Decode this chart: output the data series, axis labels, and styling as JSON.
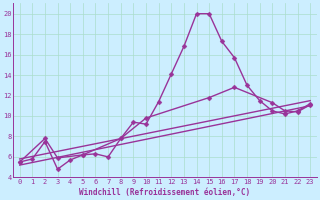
{
  "background_color": "#cceeff",
  "grid_color": "#aaddcc",
  "line_color": "#993399",
  "xlabel": "Windchill (Refroidissement éolien,°C)",
  "xlim": [
    -0.5,
    23.5
  ],
  "ylim": [
    4,
    21
  ],
  "yticks": [
    4,
    6,
    8,
    10,
    12,
    14,
    16,
    18,
    20
  ],
  "xticks": [
    0,
    1,
    2,
    3,
    4,
    5,
    6,
    7,
    8,
    9,
    10,
    11,
    12,
    13,
    14,
    15,
    16,
    17,
    18,
    19,
    20,
    21,
    22,
    23
  ],
  "series": [
    {
      "x": [
        0,
        1,
        2,
        3,
        4,
        5,
        6,
        7,
        8,
        9,
        10,
        11,
        12,
        13,
        14,
        15,
        16,
        17,
        18,
        19,
        20,
        21,
        22,
        23
      ],
      "y": [
        5.5,
        5.8,
        7.5,
        4.8,
        5.7,
        6.2,
        6.3,
        6.0,
        7.8,
        9.4,
        9.2,
        11.4,
        14.1,
        16.8,
        20.0,
        20.0,
        17.3,
        15.7,
        13.0,
        11.5,
        10.5,
        10.2,
        10.5,
        11.2
      ],
      "marker": "D",
      "markersize": 2.5,
      "linewidth": 1.0
    },
    {
      "x": [
        0,
        2,
        3,
        5,
        8,
        10,
        15,
        17,
        20,
        21,
        22,
        23
      ],
      "y": [
        5.5,
        7.8,
        5.9,
        6.2,
        7.8,
        9.8,
        11.8,
        12.8,
        11.3,
        10.5,
        10.4,
        11.1
      ],
      "marker": "D",
      "markersize": 2.5,
      "linewidth": 1.0
    },
    {
      "x": [
        0,
        23
      ],
      "y": [
        5.8,
        11.5
      ],
      "marker": null,
      "linewidth": 1.0
    },
    {
      "x": [
        0,
        23
      ],
      "y": [
        5.2,
        11.0
      ],
      "marker": null,
      "linewidth": 1.0
    }
  ],
  "title_fontsize": 6,
  "tick_fontsize": 5,
  "label_fontsize": 5.5
}
